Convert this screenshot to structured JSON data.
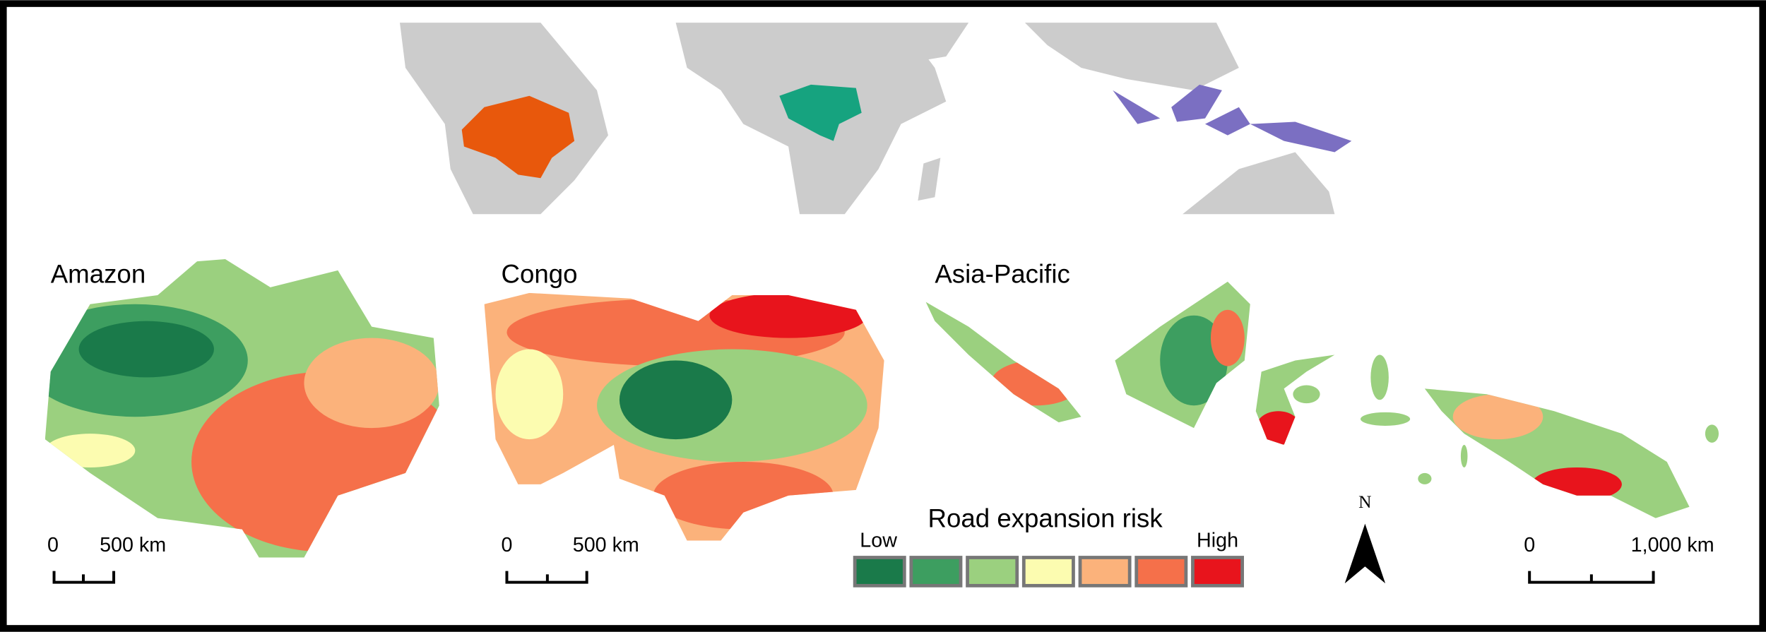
{
  "regions": [
    {
      "label": "Amazon"
    },
    {
      "label": "Congo"
    },
    {
      "label": "Asia-Pacific"
    }
  ],
  "legend": {
    "title": "Road expansion risk",
    "low": "Low",
    "high": "High",
    "colors": [
      "#1a7a4a",
      "#3d9e60",
      "#9bd07f",
      "#fcfcb0",
      "#fbb27b",
      "#f5704a",
      "#e8141c"
    ]
  },
  "scale_bars": [
    {
      "zero": "0",
      "distance": "500 km"
    },
    {
      "zero": "0",
      "distance": "500 km"
    },
    {
      "zero": "0",
      "distance": "1,000 km"
    }
  ],
  "north": "N"
}
